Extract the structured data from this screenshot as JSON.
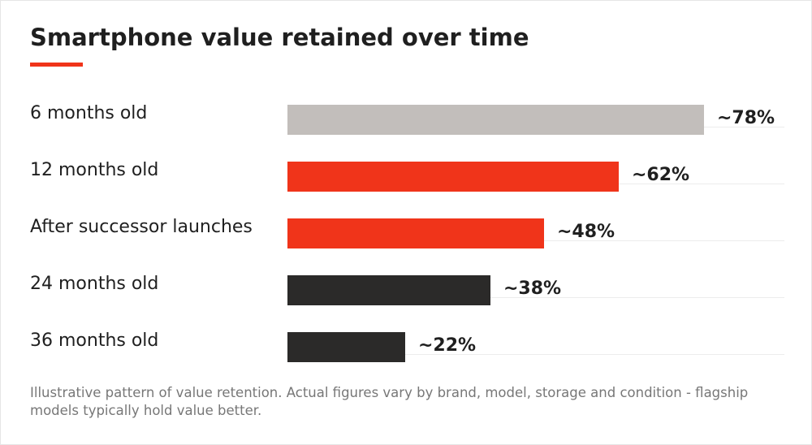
{
  "chart_data": {
    "type": "bar",
    "orientation": "horizontal",
    "title": "Smartphone value retained over time",
    "categories": [
      "6 months old",
      "12 months old",
      "After successor launches",
      "24 months old",
      "36 months old"
    ],
    "values": [
      78,
      62,
      48,
      38,
      22
    ],
    "value_labels": [
      "~78%",
      "~62%",
      "~48%",
      "~38%",
      "~22%"
    ],
    "bar_colors": [
      "#c2bebb",
      "#f0341a",
      "#f0341a",
      "#2b2a29",
      "#2b2a29"
    ],
    "xlim": [
      0,
      93
    ],
    "grid": false,
    "legend": "none"
  },
  "footnote": "Illustrative pattern of value retention. Actual figures vary by brand, model, storage and condition - flagship models typically hold value better.",
  "colors": {
    "accent": "#f0341a",
    "text": "#1f1f1f",
    "muted": "#777777"
  }
}
